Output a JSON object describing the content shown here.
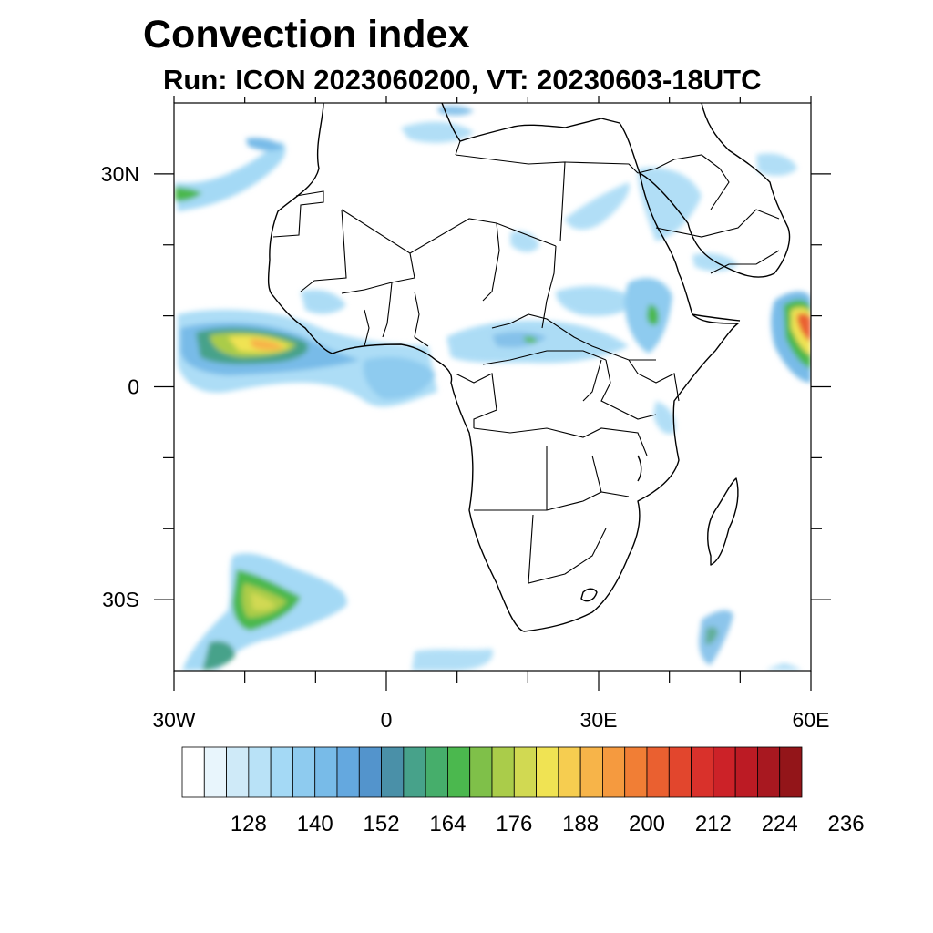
{
  "title": "Convection index",
  "subtitle": "Run: ICON 2023060200,  VT: 20230603-18UTC",
  "map": {
    "lon_range": [
      -30,
      60
    ],
    "lat_range": [
      -40,
      40
    ],
    "x_tick_labels": [
      {
        "lon": -30,
        "label": "30W"
      },
      {
        "lon": 0,
        "label": "0"
      },
      {
        "lon": 30,
        "label": "30E"
      },
      {
        "lon": 60,
        "label": "60E"
      }
    ],
    "y_tick_labels": [
      {
        "lat": 30,
        "label": "30N"
      },
      {
        "lat": 0,
        "label": "0"
      },
      {
        "lat": -30,
        "label": "30S"
      }
    ],
    "convection_regions": [
      {
        "name": "intertropical-atlantic",
        "lon": -20,
        "lat": 5,
        "level": 0.55
      },
      {
        "name": "southwest-atlantic-front",
        "lon": -16,
        "lat": -30,
        "level": 0.5
      },
      {
        "name": "arabian-sea",
        "lon": 58,
        "lat": 10,
        "level": 0.85
      },
      {
        "name": "central-africa",
        "lon": 22,
        "lat": 6,
        "level": 0.25
      },
      {
        "name": "ethiopia",
        "lon": 38,
        "lat": 10,
        "level": 0.3
      }
    ]
  },
  "colorbar": {
    "colors": [
      "#ffffff",
      "#e8f5fc",
      "#cfeaf8",
      "#b9e2f7",
      "#a4d9f5",
      "#8ecbef",
      "#78bbe8",
      "#64a8df",
      "#5394cc",
      "#4a90a8",
      "#47a28a",
      "#46ae6b",
      "#4bb84e",
      "#7fc049",
      "#aacc4a",
      "#d1d952",
      "#f0e353",
      "#f6cd50",
      "#f7b449",
      "#f59a3f",
      "#f17e35",
      "#ea6030",
      "#e2462d",
      "#d9312b",
      "#cc2228",
      "#bc1b24",
      "#a81820",
      "#931519"
    ],
    "labels": [
      "128",
      "140",
      "152",
      "164",
      "176",
      "188",
      "200",
      "212",
      "224",
      "236"
    ]
  }
}
